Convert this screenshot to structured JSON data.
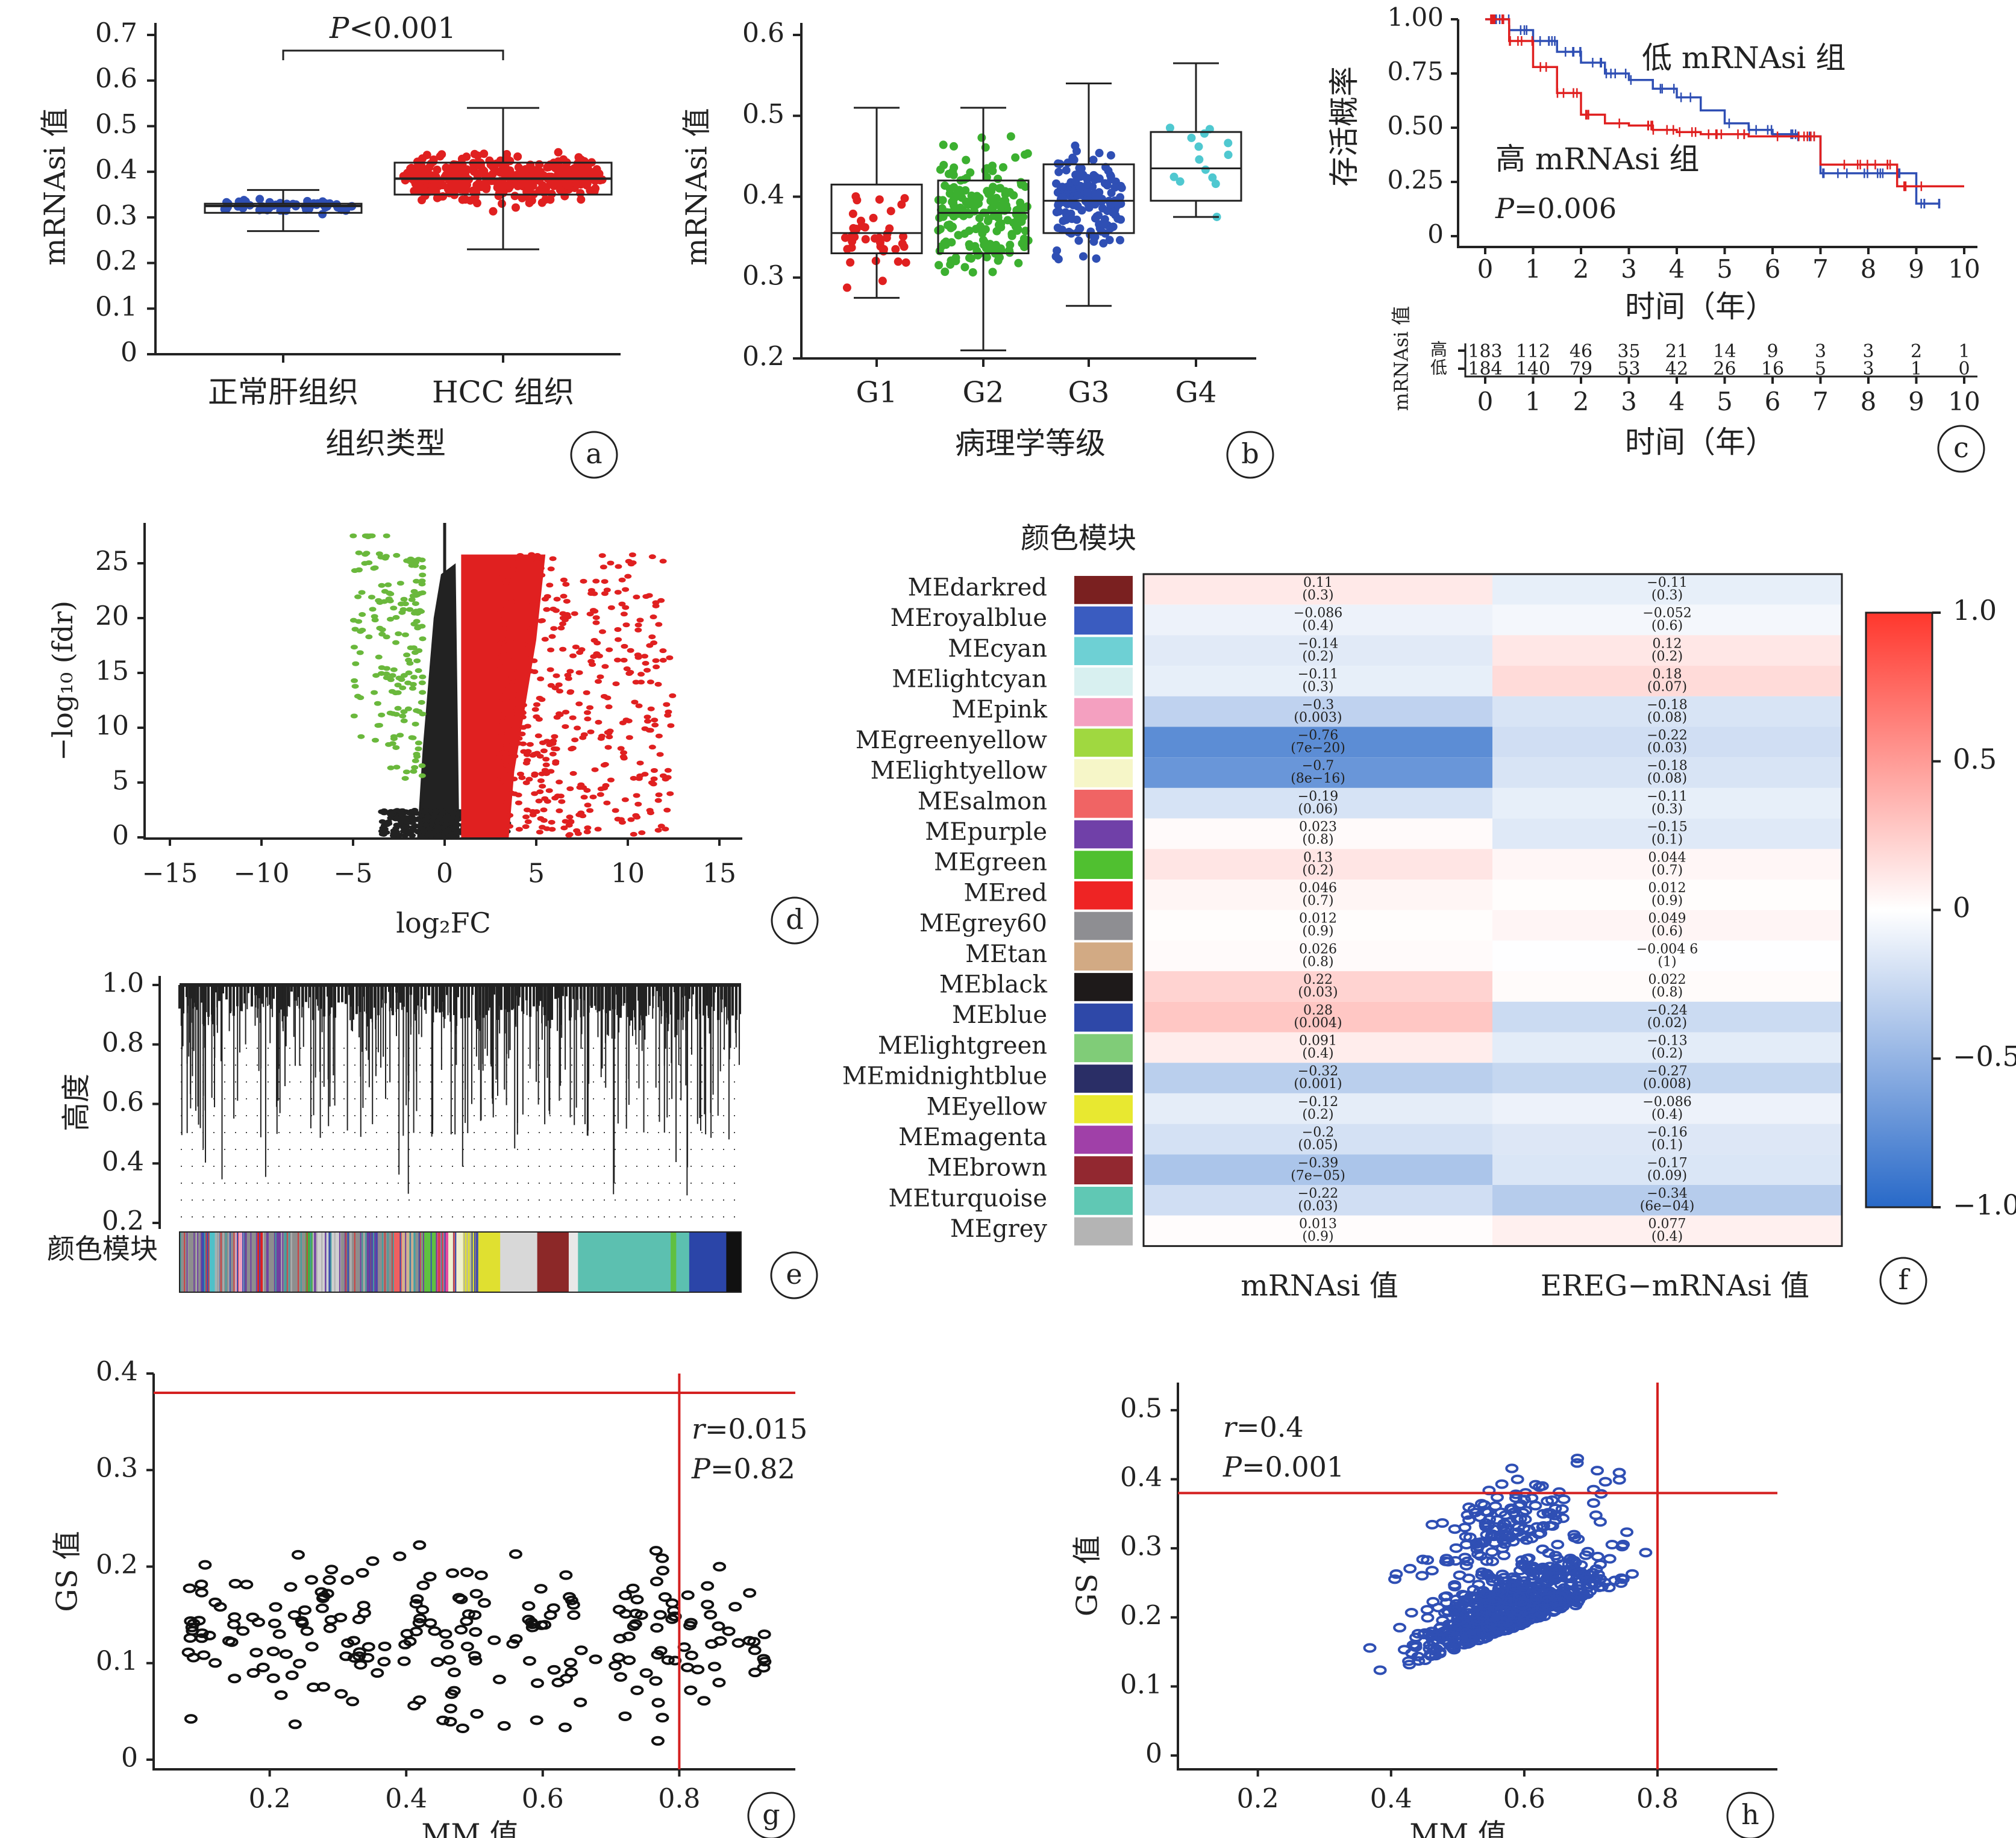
{
  "chart_data": [
    {
      "panel": "a",
      "type": "box",
      "ylabel": "mRNAsi 值",
      "xlabel": "组织类型",
      "categories": [
        "正常肝组织",
        "HCC 组织"
      ],
      "ylim": [
        0,
        0.7
      ],
      "yticks": [
        "0",
        "0.1",
        "0.2",
        "0.3",
        "0.4",
        "0.5",
        "0.6",
        "0.7"
      ],
      "annotation": "P<0.001",
      "boxes": [
        {
          "min": 0.27,
          "q1": 0.31,
          "median": 0.325,
          "q3": 0.33,
          "max": 0.36
        },
        {
          "min": 0.23,
          "q1": 0.35,
          "median": 0.385,
          "q3": 0.42,
          "max": 0.54
        }
      ],
      "colors": [
        "#2f4fb4",
        "#e02020"
      ]
    },
    {
      "panel": "b",
      "type": "box",
      "ylabel": "mRNAsi 值",
      "xlabel": "病理学等级",
      "categories": [
        "G1",
        "G2",
        "G3",
        "G4"
      ],
      "ylim": [
        0.2,
        0.6
      ],
      "yticks": [
        "0.2",
        "0.3",
        "0.4",
        "0.5",
        "0.6"
      ],
      "boxes": [
        {
          "min": 0.275,
          "q1": 0.33,
          "median": 0.355,
          "q3": 0.415,
          "max": 0.51
        },
        {
          "min": 0.21,
          "q1": 0.33,
          "median": 0.38,
          "q3": 0.42,
          "max": 0.51
        },
        {
          "min": 0.265,
          "q1": 0.355,
          "median": 0.395,
          "q3": 0.44,
          "max": 0.54
        },
        {
          "min": 0.375,
          "q1": 0.395,
          "median": 0.435,
          "q3": 0.48,
          "max": 0.565
        }
      ],
      "colors": [
        "#e02020",
        "#3cb030",
        "#2f4fb4",
        "#4fc8d0"
      ]
    },
    {
      "panel": "c",
      "type": "line",
      "ylabel": "存活概率",
      "xlabel": "时间（年）",
      "xticks": [
        "0",
        "1",
        "2",
        "3",
        "4",
        "5",
        "6",
        "7",
        "8",
        "9",
        "10"
      ],
      "yticks": [
        "0",
        "0.25",
        "0.50",
        "0.75",
        "1.00"
      ],
      "ylim": [
        0,
        1
      ],
      "xlim": [
        0,
        10
      ],
      "labels": [
        "低 mRNAsi 组",
        "高 mRNAsi 组",
        "P=0.006"
      ],
      "series": [
        {
          "name": "低 mRNAsi 组",
          "color": "#2f4fb4",
          "x": [
            0,
            0.5,
            1,
            1.5,
            2,
            2.5,
            3,
            3.5,
            4,
            4.5,
            5,
            5.5,
            6,
            6.5,
            6.8,
            7,
            8,
            8.6,
            9,
            9.5
          ],
          "y": [
            1,
            0.95,
            0.9,
            0.85,
            0.8,
            0.75,
            0.72,
            0.68,
            0.64,
            0.58,
            0.52,
            0.49,
            0.47,
            0.46,
            0.46,
            0.29,
            0.29,
            0.29,
            0.15,
            0.15
          ]
        },
        {
          "name": "高 mRNAsi 组",
          "color": "#e02020",
          "x": [
            0,
            0.5,
            1,
            1.5,
            2,
            2.5,
            3,
            3.5,
            4,
            4.5,
            5,
            5.5,
            6,
            6.5,
            6.8,
            7,
            8,
            8.6,
            9,
            10
          ],
          "y": [
            1,
            0.9,
            0.78,
            0.66,
            0.56,
            0.52,
            0.51,
            0.49,
            0.48,
            0.47,
            0.47,
            0.46,
            0.46,
            0.46,
            0.46,
            0.33,
            0.33,
            0.23,
            0.23,
            0.23
          ]
        }
      ],
      "risk_table": {
        "ylabel": "mRNAsi 值",
        "row_labels": [
          "高",
          "低"
        ],
        "high": [
          "183",
          "112",
          "46",
          "35",
          "21",
          "14",
          "9",
          "3",
          "3",
          "2",
          "1"
        ],
        "low": [
          "184",
          "140",
          "79",
          "53",
          "42",
          "26",
          "16",
          "5",
          "3",
          "1",
          "0"
        ]
      }
    },
    {
      "panel": "d",
      "type": "scatter",
      "title": "",
      "xlabel": "log₂FC",
      "ylabel": "−log₁₀ (fdr)",
      "xlim": [
        -16,
        16
      ],
      "ylim": [
        0,
        27
      ],
      "xticks": [
        "−15",
        "−10",
        "−5",
        "0",
        "5",
        "10",
        "15"
      ],
      "yticks": [
        "0",
        "5",
        "10",
        "15",
        "20",
        "25"
      ],
      "colors": {
        "down": "#6ab83c",
        "up": "#e02020",
        "ns": "#222222"
      }
    },
    {
      "panel": "e",
      "type": "dendrogram",
      "ylabel": "高度",
      "ylim": [
        0.2,
        1.0
      ],
      "yticks": [
        "0.2",
        "0.4",
        "0.6",
        "0.8",
        "1.0"
      ],
      "module_label": "颜色模块",
      "module_blocks": [
        {
          "color": "#8e8e8e",
          "w": 1.2
        },
        {
          "color": "#3b4fb0",
          "w": 0.4
        },
        {
          "color": "#4fc0c8",
          "w": 0.4
        },
        {
          "color": "#8e8e8e",
          "w": 1.0
        },
        {
          "color": "#f0a0c0",
          "w": 0.4
        },
        {
          "color": "#8e8e8e",
          "w": 0.8
        },
        {
          "color": "#e02020",
          "w": 0.3
        },
        {
          "color": "#8e8e8e",
          "w": 0.6
        },
        {
          "color": "#7040a0",
          "w": 0.5
        },
        {
          "color": "#8e8e8e",
          "w": 1.2
        },
        {
          "color": "#40b040",
          "w": 0.4
        },
        {
          "color": "#d0d0d0",
          "w": 1.5
        },
        {
          "color": "#8e8e8e",
          "w": 1.4
        },
        {
          "color": "#6a3fa0",
          "w": 0.6
        },
        {
          "color": "#8e8e8e",
          "w": 0.8
        },
        {
          "color": "#f06060",
          "w": 0.5
        },
        {
          "color": "#d2b48c",
          "w": 0.6
        },
        {
          "color": "#8e8e8e",
          "w": 0.5
        },
        {
          "color": "#60c040",
          "w": 0.8
        },
        {
          "color": "#e84aa0",
          "w": 0.6
        },
        {
          "color": "#f0f0d0",
          "w": 0.8
        },
        {
          "color": "#e0e030",
          "w": 2.0
        },
        {
          "color": "#d8d8d8",
          "w": 2.0
        },
        {
          "color": "#8c2828",
          "w": 1.7
        },
        {
          "color": "#e8e8e8",
          "w": 0.5
        },
        {
          "color": "#5cc0b0",
          "w": 5.0
        },
        {
          "color": "#60c040",
          "w": 0.3
        },
        {
          "color": "#5cc0b0",
          "w": 0.7
        },
        {
          "color": "#2b45a8",
          "w": 2.0
        },
        {
          "color": "#111111",
          "w": 0.8
        }
      ]
    },
    {
      "panel": "f",
      "type": "heatmap",
      "title": "颜色模块",
      "columns": [
        "mRNAsi 值",
        "EREG−mRNAsi 值"
      ],
      "rows": [
        {
          "name": "MEdarkred",
          "color": "#7a2020",
          "v1": "0.11",
          "p1": "(0.3)",
          "v2": "−0.11",
          "p2": "(0.3)",
          "c1": 0.11,
          "c2": -0.11
        },
        {
          "name": "MEroyalblue",
          "color": "#3a5cc0",
          "v1": "−0.086",
          "p1": "(0.4)",
          "v2": "−0.052",
          "p2": "(0.6)",
          "c1": -0.086,
          "c2": -0.052
        },
        {
          "name": "MEcyan",
          "color": "#6ed0d4",
          "v1": "−0.14",
          "p1": "(0.2)",
          "v2": "0.12",
          "p2": "(0.2)",
          "c1": -0.14,
          "c2": 0.12
        },
        {
          "name": "MElightcyan",
          "color": "#d8f0f0",
          "v1": "−0.11",
          "p1": "(0.3)",
          "v2": "0.18",
          "p2": "(0.07)",
          "c1": -0.11,
          "c2": 0.18
        },
        {
          "name": "MEpink",
          "color": "#f4a0c0",
          "v1": "−0.3",
          "p1": "(0.003)",
          "v2": "−0.18",
          "p2": "(0.08)",
          "c1": -0.3,
          "c2": -0.18
        },
        {
          "name": "MEgreenyellow",
          "color": "#a0d840",
          "v1": "−0.76",
          "p1": "(7e−20)",
          "v2": "−0.22",
          "p2": "(0.03)",
          "c1": -0.76,
          "c2": -0.22
        },
        {
          "name": "MElightyellow",
          "color": "#f6f6c8",
          "v1": "−0.7",
          "p1": "(8e−16)",
          "v2": "−0.18",
          "p2": "(0.08)",
          "c1": -0.7,
          "c2": -0.18
        },
        {
          "name": "MEsalmon",
          "color": "#f06464",
          "v1": "−0.19",
          "p1": "(0.06)",
          "v2": "−0.11",
          "p2": "(0.3)",
          "c1": -0.19,
          "c2": -0.11
        },
        {
          "name": "MEpurple",
          "color": "#7040a8",
          "v1": "0.023",
          "p1": "(0.8)",
          "v2": "−0.15",
          "p2": "(0.1)",
          "c1": 0.023,
          "c2": -0.15
        },
        {
          "name": "MEgreen",
          "color": "#50c030",
          "v1": "0.13",
          "p1": "(0.2)",
          "v2": "0.044",
          "p2": "(0.7)",
          "c1": 0.13,
          "c2": 0.044
        },
        {
          "name": "MEred",
          "color": "#ee2424",
          "v1": "0.046",
          "p1": "(0.7)",
          "v2": "0.012",
          "p2": "(0.9)",
          "c1": 0.046,
          "c2": 0.012
        },
        {
          "name": "MEgrey60",
          "color": "#8e8e92",
          "v1": "0.012",
          "p1": "(0.9)",
          "v2": "0.049",
          "p2": "(0.6)",
          "c1": 0.012,
          "c2": 0.049
        },
        {
          "name": "MEtan",
          "color": "#d2aa84",
          "v1": "0.026",
          "p1": "(0.8)",
          "v2": "−0.004 6",
          "p2": "(1)",
          "c1": 0.026,
          "c2": -0.0046
        },
        {
          "name": "MEblack",
          "color": "#1e1a1a",
          "v1": "0.22",
          "p1": "(0.03)",
          "v2": "0.022",
          "p2": "(0.8)",
          "c1": 0.22,
          "c2": 0.022
        },
        {
          "name": "MEblue",
          "color": "#2e48a8",
          "v1": "0.28",
          "p1": "(0.004)",
          "v2": "−0.24",
          "p2": "(0.02)",
          "c1": 0.28,
          "c2": -0.24
        },
        {
          "name": "MElightgreen",
          "color": "#80cc78",
          "v1": "0.091",
          "p1": "(0.4)",
          "v2": "−0.13",
          "p2": "(0.2)",
          "c1": 0.091,
          "c2": -0.13
        },
        {
          "name": "MEmidnightblue",
          "color": "#2a2e66",
          "v1": "−0.32",
          "p1": "(0.001)",
          "v2": "−0.27",
          "p2": "(0.008)",
          "c1": -0.32,
          "c2": -0.27
        },
        {
          "name": "MEyellow",
          "color": "#e8e830",
          "v1": "−0.12",
          "p1": "(0.2)",
          "v2": "−0.086",
          "p2": "(0.4)",
          "c1": -0.12,
          "c2": -0.086
        },
        {
          "name": "MEmagenta",
          "color": "#a040a8",
          "v1": "−0.2",
          "p1": "(0.05)",
          "v2": "−0.16",
          "p2": "(0.1)",
          "c1": -0.2,
          "c2": -0.16
        },
        {
          "name": "MEbrown",
          "color": "#922830",
          "v1": "−0.39",
          "p1": "(7e−05)",
          "v2": "−0.17",
          "p2": "(0.09)",
          "c1": -0.39,
          "c2": -0.17
        },
        {
          "name": "MEturquoise",
          "color": "#60c8b4",
          "v1": "−0.22",
          "p1": "(0.03)",
          "v2": "−0.34",
          "p2": "(6e−04)",
          "c1": -0.22,
          "c2": -0.34
        },
        {
          "name": "MEgrey",
          "color": "#b4b4b4",
          "v1": "0.013",
          "p1": "(0.9)",
          "v2": "0.077",
          "p2": "(0.4)",
          "c1": 0.013,
          "c2": 0.077
        }
      ],
      "legend_ticks": [
        "1.0",
        "0.5",
        "0",
        "−0.5",
        "−1.0"
      ],
      "range": [
        -1,
        1
      ]
    },
    {
      "panel": "g",
      "type": "scatter",
      "xlabel": "MM 值",
      "ylabel": "GS 值",
      "xlim": [
        0.03,
        0.97
      ],
      "ylim": [
        -0.01,
        0.4
      ],
      "xticks": [
        "0.2",
        "0.4",
        "0.6",
        "0.8"
      ],
      "yticks": [
        "0",
        "0.1",
        "0.2",
        "0.3",
        "0.4"
      ],
      "r_label": "r",
      "r_value": "=0.015",
      "p_label": "P",
      "p_value": "=0.82",
      "threshold_x": 0.8,
      "threshold_y": 0.38,
      "point_color": "#111111",
      "line_color": "#d42020"
    },
    {
      "panel": "h",
      "type": "scatter",
      "xlabel": "MM 值",
      "ylabel": "GS 值",
      "xlim": [
        0.08,
        0.98
      ],
      "ylim": [
        -0.02,
        0.54
      ],
      "xticks": [
        "0.2",
        "0.4",
        "0.6",
        "0.8"
      ],
      "yticks": [
        "0",
        "0.1",
        "0.2",
        "0.3",
        "0.4",
        "0.5"
      ],
      "r_label": "r",
      "r_value": "=0.4",
      "p_label": "P",
      "p_value": "=0.001",
      "threshold_x": 0.8,
      "threshold_y": 0.38,
      "point_color": "#2f4fb4",
      "line_color": "#d42020"
    }
  ],
  "panel_letters": [
    "a",
    "b",
    "c",
    "d",
    "e",
    "f",
    "g",
    "h"
  ]
}
